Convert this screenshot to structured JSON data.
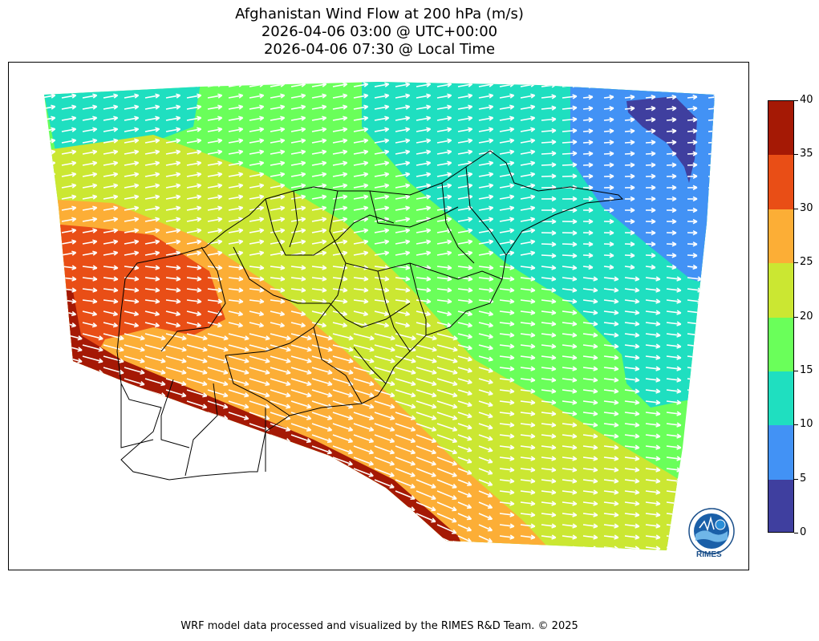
{
  "title": {
    "line1": "Afghanistan Wind Flow at 200 hPa (m/s)",
    "line2": "2026-04-06 03:00 @ UTC+00:00",
    "line3": "2026-04-06 07:30 @ Local Time"
  },
  "colorbar": {
    "ticks": [
      "0",
      "5",
      "10",
      "15",
      "20",
      "25",
      "30",
      "35",
      "40"
    ],
    "bands": [
      {
        "min": 0,
        "max": 5,
        "color": "#3f3f9f"
      },
      {
        "min": 5,
        "max": 10,
        "color": "#4292f5"
      },
      {
        "min": 10,
        "max": 15,
        "color": "#1fdfc0"
      },
      {
        "min": 15,
        "max": 20,
        "color": "#6aff5a"
      },
      {
        "min": 20,
        "max": 25,
        "color": "#cbe732"
      },
      {
        "min": 25,
        "max": 30,
        "color": "#fcae36"
      },
      {
        "min": 30,
        "max": 35,
        "color": "#e94e16"
      },
      {
        "min": 35,
        "max": 40,
        "color": "#a51905"
      }
    ]
  },
  "map": {
    "region": "Afghanistan",
    "variable": "Wind flow at 200 hPa",
    "unit": "m/s",
    "vector_color": "#ffffff",
    "boundary_color": "#000000"
  },
  "logo": {
    "text": "RIMES"
  },
  "footer": {
    "text": "WRF model data processed and visualized by the RIMES R&D Team. © 2025"
  }
}
